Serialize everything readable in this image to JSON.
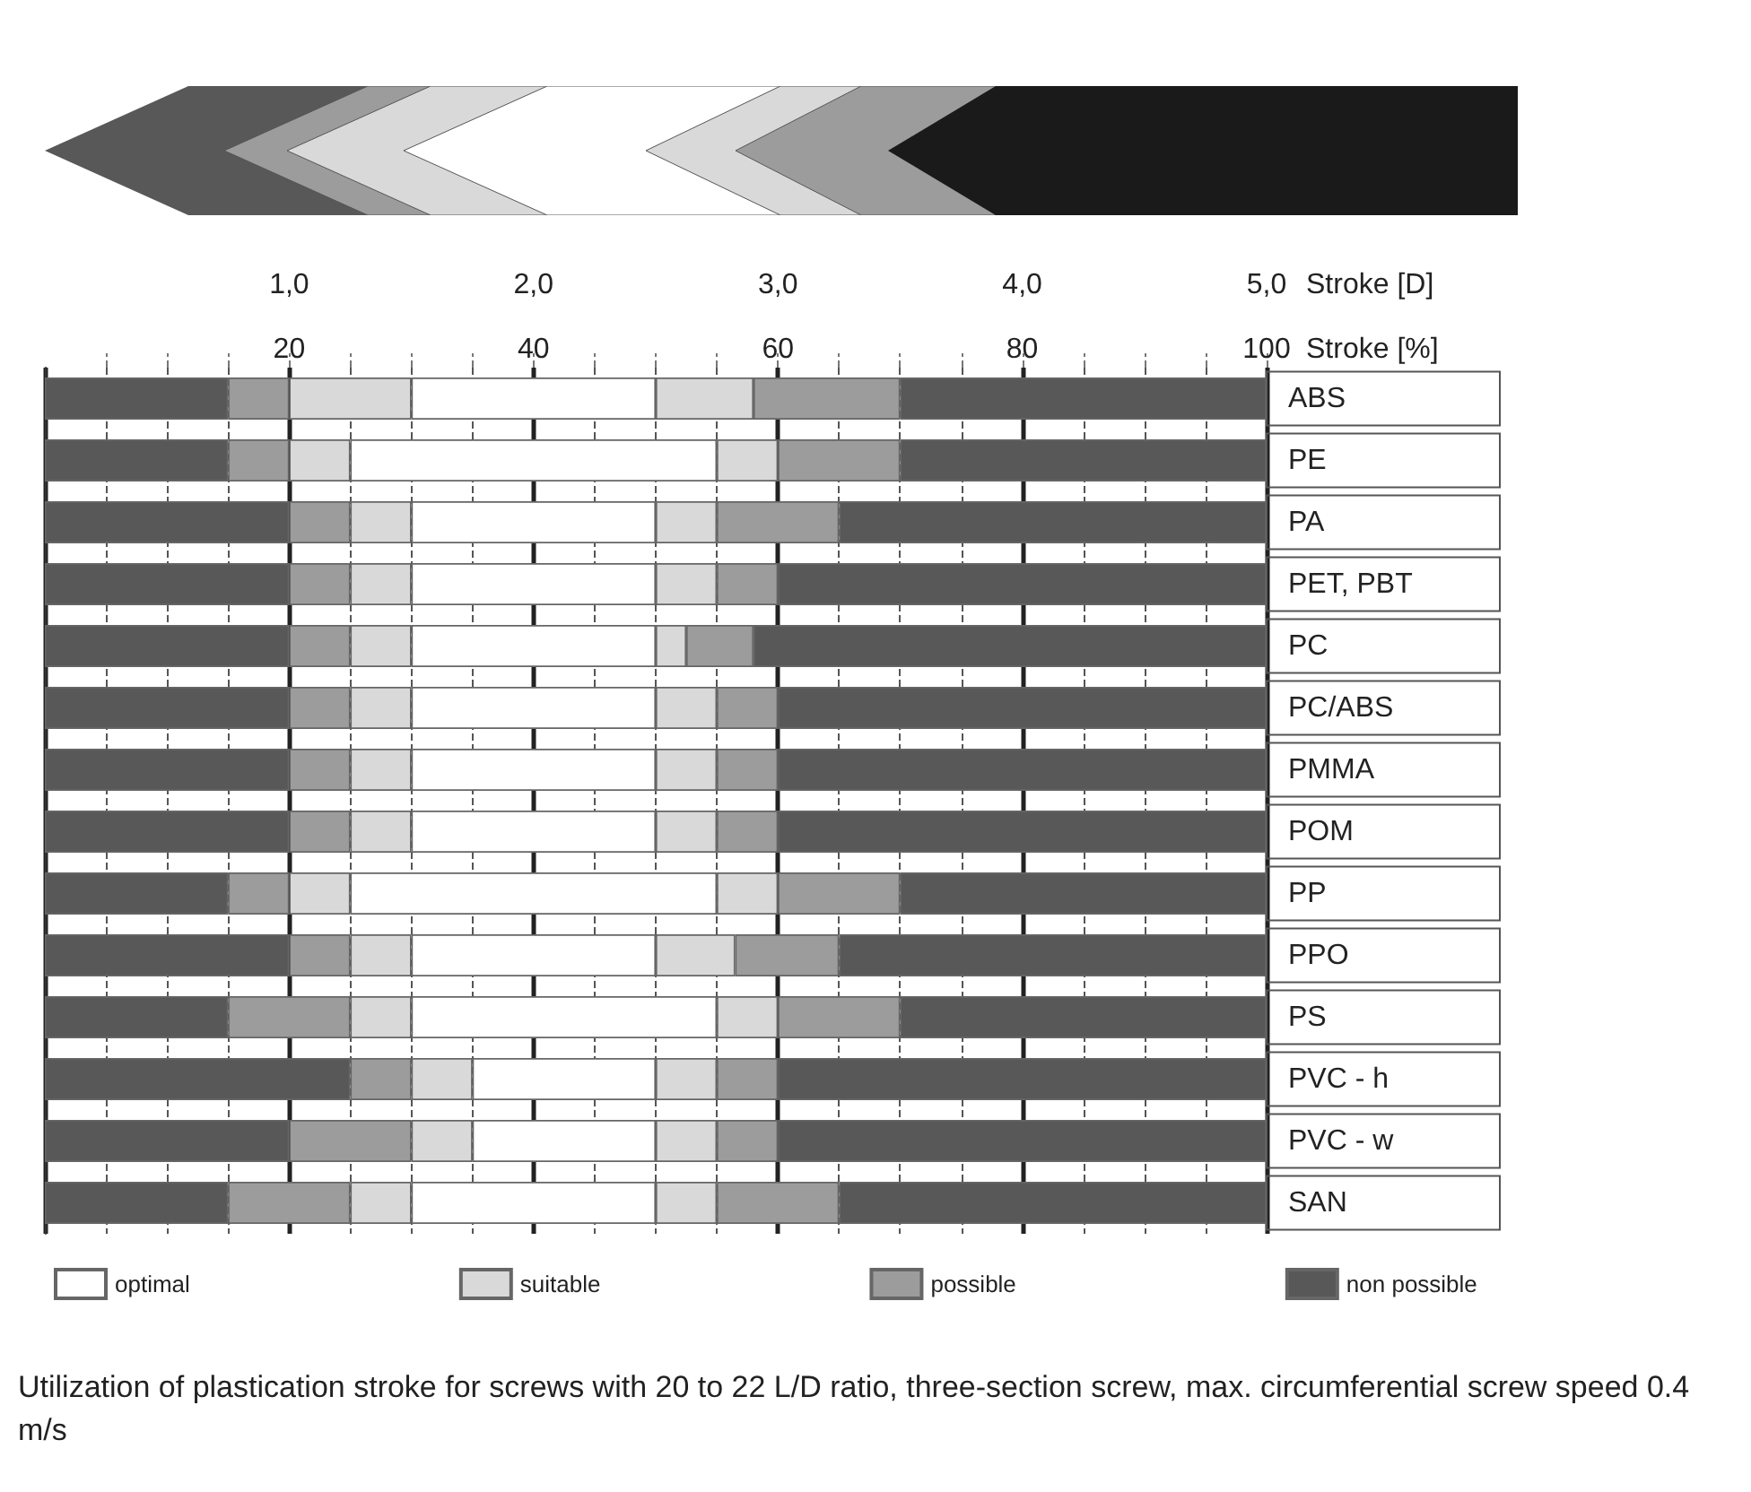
{
  "chart_data": {
    "type": "bar",
    "orientation": "horizontal",
    "stacked": true,
    "categories": [
      "ABS",
      "PE",
      "PA",
      "PET, PBT",
      "PC",
      "PC/ABS",
      "PMMA",
      "POM",
      "PP",
      "PPO",
      "PS",
      "PVC - h",
      "PVC - w",
      "SAN"
    ],
    "series": [
      {
        "name": "non possible",
        "color": "#585858",
        "values": [
          15,
          15,
          20,
          20,
          20,
          20,
          20,
          20,
          15,
          20,
          15,
          25,
          20,
          15
        ]
      },
      {
        "name": "possible",
        "color": "#9c9c9c",
        "values": [
          5,
          5,
          5,
          5,
          5,
          5,
          5,
          5,
          5,
          5,
          10,
          5,
          10,
          10
        ]
      },
      {
        "name": "suitable",
        "color": "#d9d9d9",
        "values": [
          10,
          5,
          5,
          5,
          5,
          5,
          5,
          5,
          5,
          5,
          5,
          5,
          5,
          5
        ]
      },
      {
        "name": "optimal",
        "color": "#ffffff",
        "values": [
          20,
          30,
          20,
          20,
          20,
          20,
          20,
          20,
          30,
          20,
          25,
          15,
          15,
          20
        ]
      },
      {
        "color": "#d9d9d9",
        "values": [
          8,
          5,
          5,
          5,
          2.5,
          5,
          5,
          5,
          5,
          6.5,
          5,
          5,
          5,
          5
        ]
      },
      {
        "color": "#9c9c9c",
        "values": [
          12,
          10,
          10,
          5,
          5.5,
          5,
          5,
          5,
          10,
          8.5,
          10,
          5,
          5,
          10
        ]
      },
      {
        "color": "#585858",
        "values": [
          30,
          30,
          35,
          40,
          42,
          40,
          40,
          40,
          30,
          35,
          30,
          40,
          40,
          35
        ]
      }
    ],
    "xlabel": "Stroke [%]",
    "xlim": [
      0,
      100
    ],
    "xticks": [
      {
        "value": 5,
        "label": null
      },
      {
        "value": 10,
        "label": null
      },
      {
        "value": 15,
        "label": null
      },
      20,
      {
        "value": 25,
        "label": null
      },
      {
        "value": 30,
        "label": null
      },
      {
        "value": 35,
        "label": null
      },
      40,
      {
        "value": 45,
        "label": null
      },
      {
        "value": 50,
        "label": null
      },
      {
        "value": 55,
        "label": null
      },
      60,
      {
        "value": 65,
        "label": null
      },
      {
        "value": 70,
        "label": null
      },
      {
        "value": 75,
        "label": null
      },
      80,
      {
        "value": 85,
        "label": null
      },
      {
        "value": 90,
        "label": null
      },
      {
        "value": 95,
        "label": null
      },
      100
    ],
    "x2label": "Stroke [D]",
    "x2lim": [
      0,
      5
    ],
    "x2ticks": [
      {
        "value": 1,
        "label": "1,0"
      },
      {
        "value": 2,
        "label": "2,0"
      },
      {
        "value": 3,
        "label": "3,0"
      },
      {
        "value": 4,
        "label": "4,0"
      },
      {
        "value": 5,
        "label": "5,0"
      }
    ],
    "grid": "x",
    "legend": "bottom",
    "annotations": [
      "Utilization of plastication stroke for screws with 20 to 22 L/D ratio, three-section screw, max. circumferential screw speed 0.4 m/s"
    ]
  }
}
